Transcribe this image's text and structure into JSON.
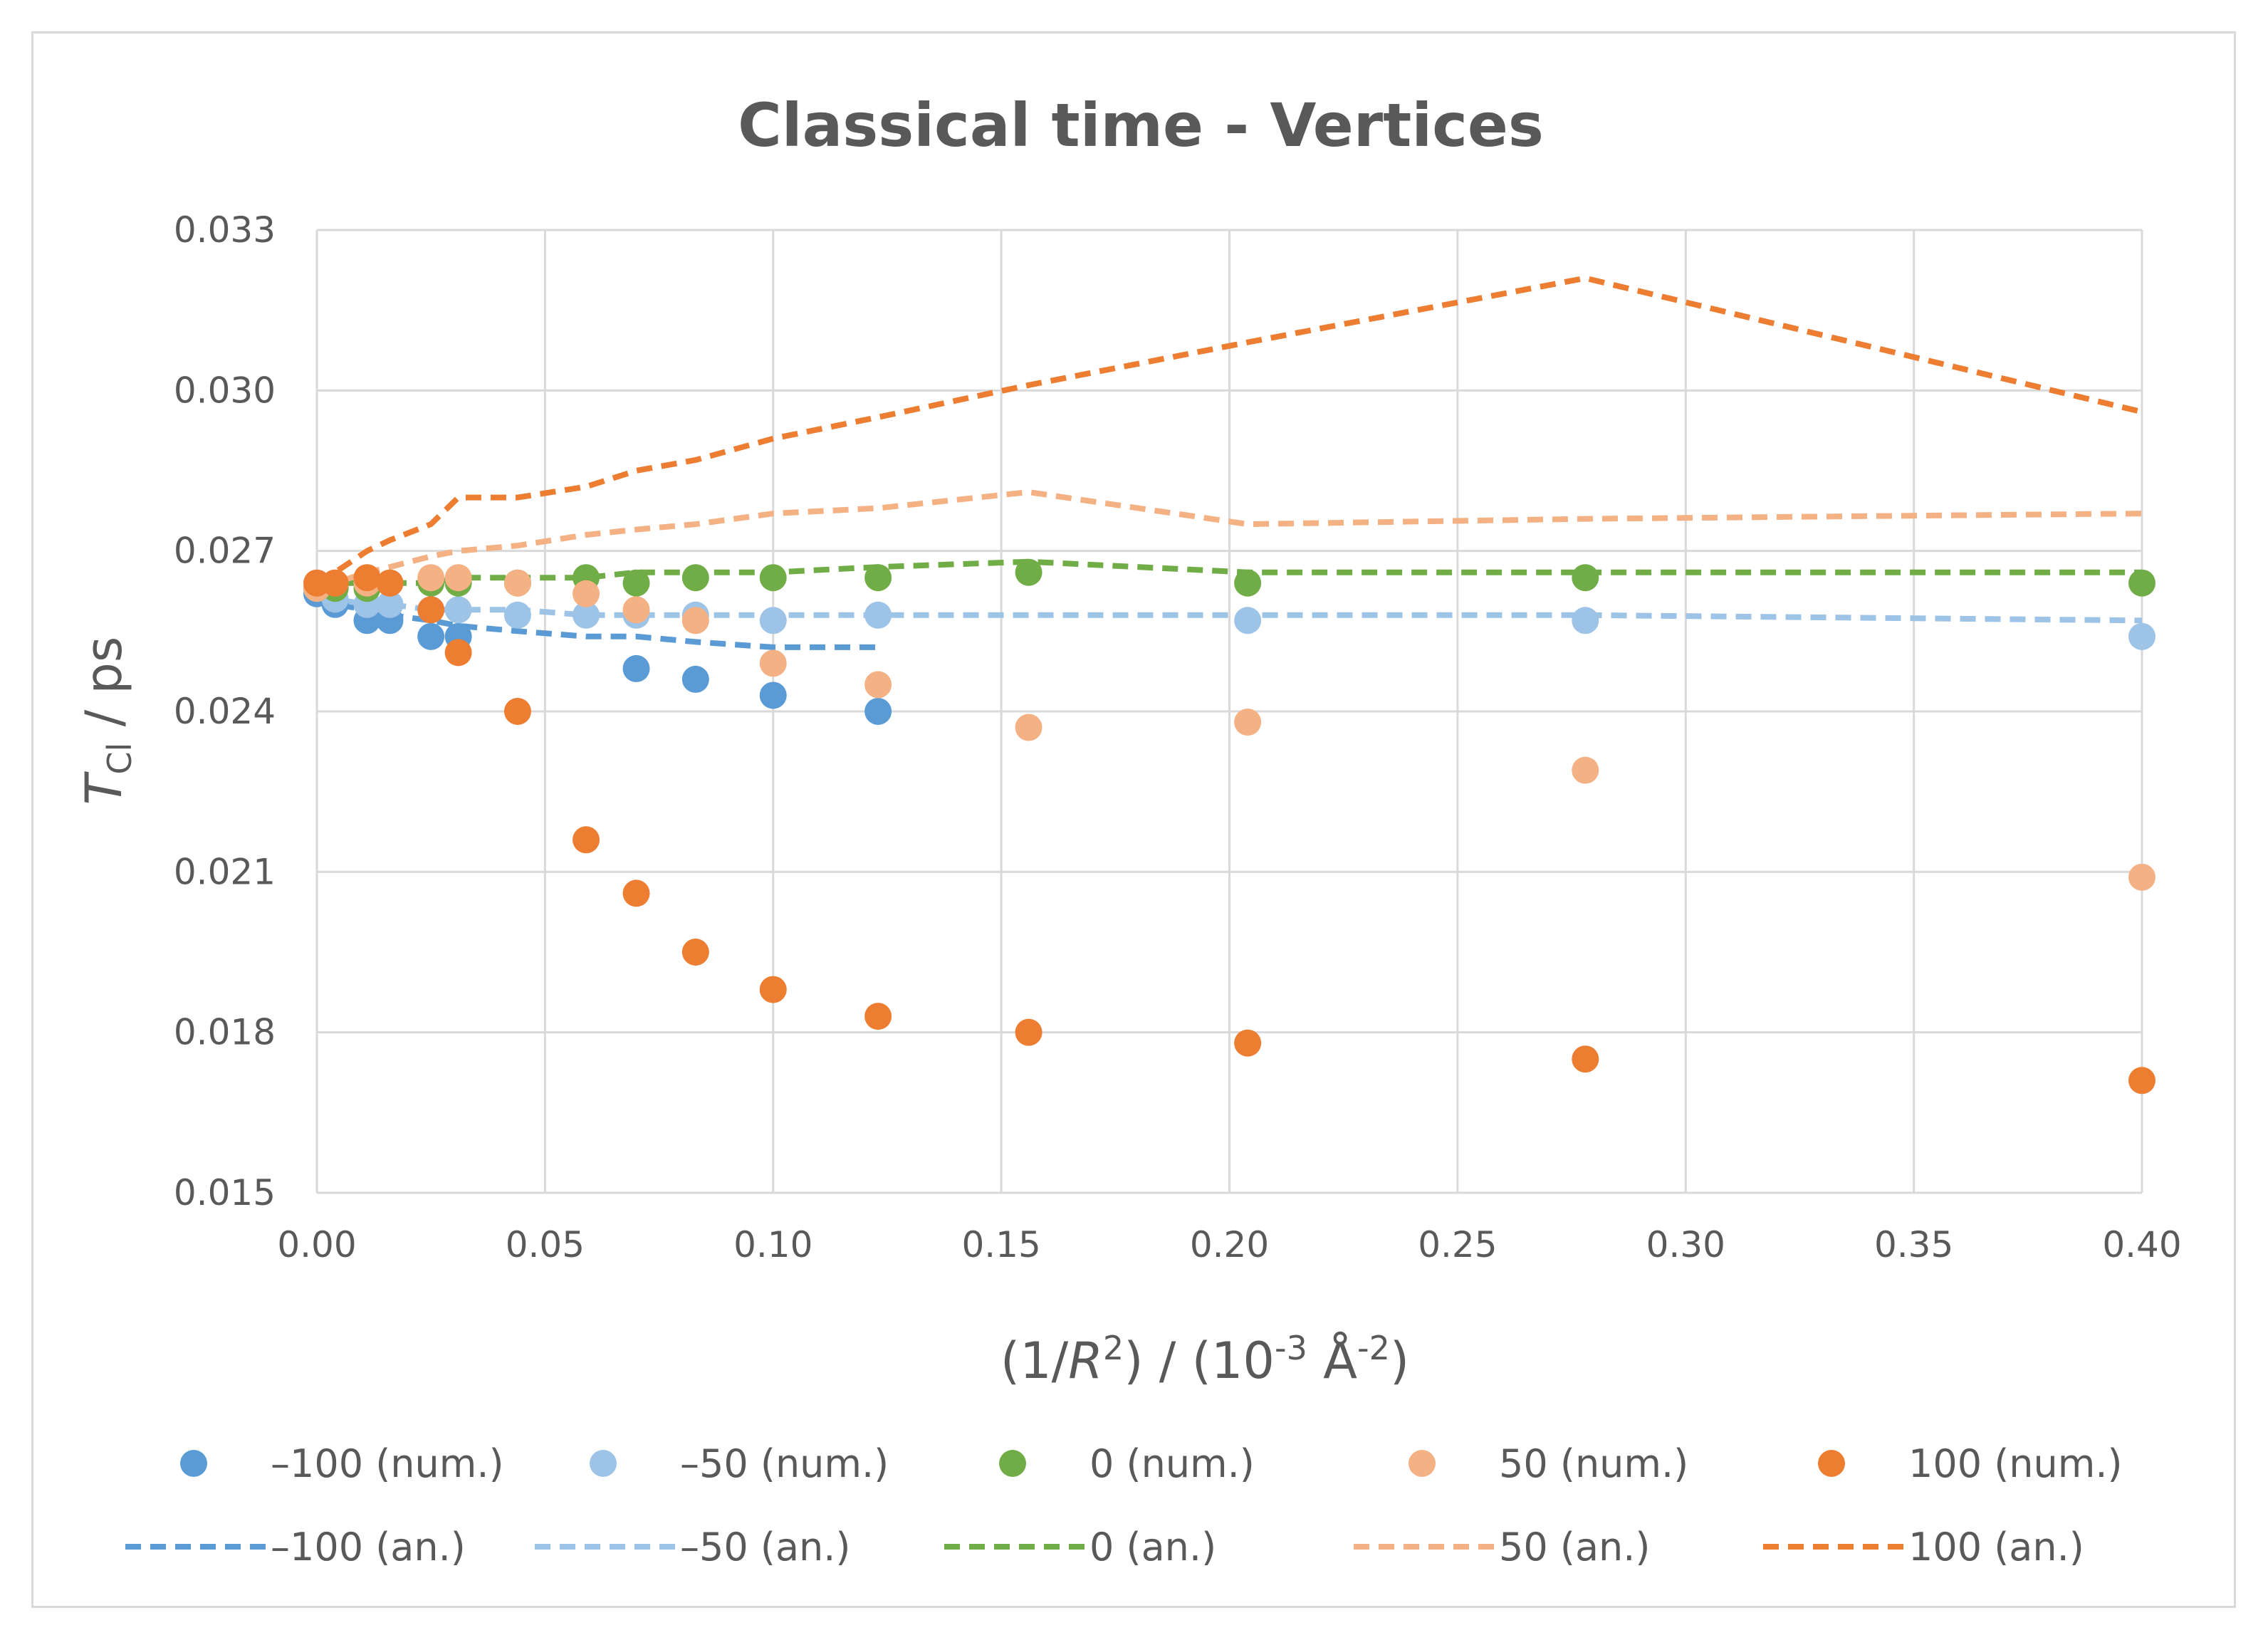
{
  "chart_data": {
    "type": "scatter",
    "title": "Classical time - Vertices",
    "xlabel": {
      "pre": "(1/",
      "var": "R",
      "sup": "2",
      "mid": ") / (10",
      "sup2": "-3",
      "post": " Å",
      "sup3": "-2",
      "end": ")"
    },
    "ylabel": {
      "var": "T",
      "sub": "Cl",
      "post": " / ps"
    },
    "xlim": [
      0,
      0.4
    ],
    "ylim": [
      0.015,
      0.033
    ],
    "xticks": [
      0.0,
      0.05,
      0.1,
      0.15,
      0.2,
      0.25,
      0.3,
      0.35,
      0.4
    ],
    "yticks": [
      0.015,
      0.018,
      0.021,
      0.024,
      0.027,
      0.03,
      0.033
    ],
    "xtick_labels": [
      "0.00",
      "0.05",
      "0.10",
      "0.15",
      "0.20",
      "0.25",
      "0.30",
      "0.35",
      "0.40"
    ],
    "ytick_labels": [
      "0.015",
      "0.018",
      "0.021",
      "0.024",
      "0.027",
      "0.030",
      "0.033"
    ],
    "grid": true,
    "legend_position": "bottom",
    "series": [
      {
        "name": "–100 (num.)",
        "kind": "markers",
        "color": "#5b9bd5",
        "x": [
          0.0,
          0.004,
          0.011,
          0.016,
          0.025,
          0.031,
          0.07,
          0.083,
          0.1,
          0.123
        ],
        "y": [
          0.0262,
          0.026,
          0.0257,
          0.0257,
          0.0254,
          0.0254,
          0.0248,
          0.0246,
          0.0243,
          0.024
        ]
      },
      {
        "name": "–50 (num.)",
        "kind": "markers",
        "color": "#9dc3e6",
        "x": [
          0.0,
          0.004,
          0.011,
          0.016,
          0.025,
          0.031,
          0.044,
          0.059,
          0.07,
          0.083,
          0.1,
          0.123,
          0.204,
          0.278,
          0.4
        ],
        "y": [
          0.0263,
          0.0261,
          0.026,
          0.026,
          0.0259,
          0.0259,
          0.0258,
          0.0258,
          0.0258,
          0.0258,
          0.0257,
          0.0258,
          0.0257,
          0.0257,
          0.0254
        ]
      },
      {
        "name": "0 (num.)",
        "kind": "markers",
        "color": "#70ad47",
        "x": [
          0.0,
          0.004,
          0.011,
          0.016,
          0.025,
          0.031,
          0.044,
          0.059,
          0.07,
          0.083,
          0.1,
          0.123,
          0.156,
          0.204,
          0.278,
          0.4
        ],
        "y": [
          0.0263,
          0.0263,
          0.0263,
          0.0264,
          0.0264,
          0.0264,
          0.0264,
          0.0265,
          0.0264,
          0.0265,
          0.0265,
          0.0265,
          0.0266,
          0.0264,
          0.0265,
          0.0264
        ]
      },
      {
        "name": "50 (num.)",
        "kind": "markers",
        "color": "#f4b183",
        "x": [
          0.0,
          0.004,
          0.011,
          0.016,
          0.025,
          0.031,
          0.044,
          0.059,
          0.07,
          0.083,
          0.1,
          0.123,
          0.156,
          0.204,
          0.278,
          0.4
        ],
        "y": [
          0.0263,
          0.0264,
          0.0264,
          0.0264,
          0.0265,
          0.0265,
          0.0264,
          0.0262,
          0.0259,
          0.0257,
          0.0249,
          0.0245,
          0.0237,
          0.0238,
          0.0229,
          0.0209
        ]
      },
      {
        "name": "100 (num.)",
        "kind": "markers",
        "color": "#ed7d31",
        "x": [
          0.0,
          0.004,
          0.011,
          0.016,
          0.025,
          0.031,
          0.044,
          0.059,
          0.07,
          0.083,
          0.1,
          0.123,
          0.156,
          0.204,
          0.278,
          0.4
        ],
        "y": [
          0.0264,
          0.0264,
          0.0265,
          0.0264,
          0.0259,
          0.0251,
          0.024,
          0.0216,
          0.0206,
          0.0195,
          0.0188,
          0.0183,
          0.018,
          0.0178,
          0.0175,
          0.0171
        ]
      },
      {
        "name": "–100 (an.)",
        "kind": "dashed",
        "color": "#5b9bd5",
        "x": [
          0.0,
          0.004,
          0.011,
          0.016,
          0.025,
          0.031,
          0.044,
          0.059,
          0.07,
          0.083,
          0.1,
          0.123
        ],
        "y": [
          0.0262,
          0.026,
          0.0259,
          0.0258,
          0.0257,
          0.0256,
          0.0255,
          0.0254,
          0.0254,
          0.0253,
          0.0252,
          0.0252
        ]
      },
      {
        "name": "–50 (an.)",
        "kind": "dashed",
        "color": "#9dc3e6",
        "x": [
          0.0,
          0.004,
          0.011,
          0.016,
          0.025,
          0.031,
          0.044,
          0.059,
          0.07,
          0.083,
          0.1,
          0.123,
          0.156,
          0.204,
          0.278,
          0.4
        ],
        "y": [
          0.0262,
          0.0261,
          0.026,
          0.026,
          0.0259,
          0.0259,
          0.0259,
          0.0258,
          0.0258,
          0.0258,
          0.0258,
          0.0258,
          0.0258,
          0.0258,
          0.0258,
          0.0257
        ]
      },
      {
        "name": "0 (an.)",
        "kind": "dashed",
        "color": "#70ad47",
        "x": [
          0.0,
          0.004,
          0.011,
          0.016,
          0.025,
          0.031,
          0.044,
          0.059,
          0.07,
          0.083,
          0.1,
          0.123,
          0.156,
          0.204,
          0.278,
          0.4
        ],
        "y": [
          0.0263,
          0.0264,
          0.0264,
          0.0264,
          0.0264,
          0.0265,
          0.0265,
          0.0265,
          0.0266,
          0.0266,
          0.0266,
          0.0267,
          0.0268,
          0.0266,
          0.0266,
          0.0266
        ]
      },
      {
        "name": "50 (an.)",
        "kind": "dashed",
        "color": "#f4b183",
        "x": [
          0.0,
          0.004,
          0.011,
          0.016,
          0.025,
          0.031,
          0.044,
          0.059,
          0.07,
          0.083,
          0.1,
          0.123,
          0.156,
          0.204,
          0.278,
          0.4
        ],
        "y": [
          0.0263,
          0.0264,
          0.0266,
          0.0267,
          0.0269,
          0.027,
          0.0271,
          0.0273,
          0.0274,
          0.0275,
          0.0277,
          0.0278,
          0.0281,
          0.0275,
          0.0276,
          0.0277
        ]
      },
      {
        "name": "100 (an.)",
        "kind": "dashed",
        "color": "#ed7d31",
        "x": [
          0.0,
          0.004,
          0.011,
          0.016,
          0.025,
          0.031,
          0.044,
          0.059,
          0.07,
          0.083,
          0.1,
          0.123,
          0.156,
          0.204,
          0.278,
          0.4
        ],
        "y": [
          0.0264,
          0.0266,
          0.027,
          0.0272,
          0.0275,
          0.028,
          0.028,
          0.0282,
          0.0285,
          0.0287,
          0.0291,
          0.0295,
          0.0301,
          0.0309,
          0.0321,
          0.0296
        ]
      }
    ]
  }
}
